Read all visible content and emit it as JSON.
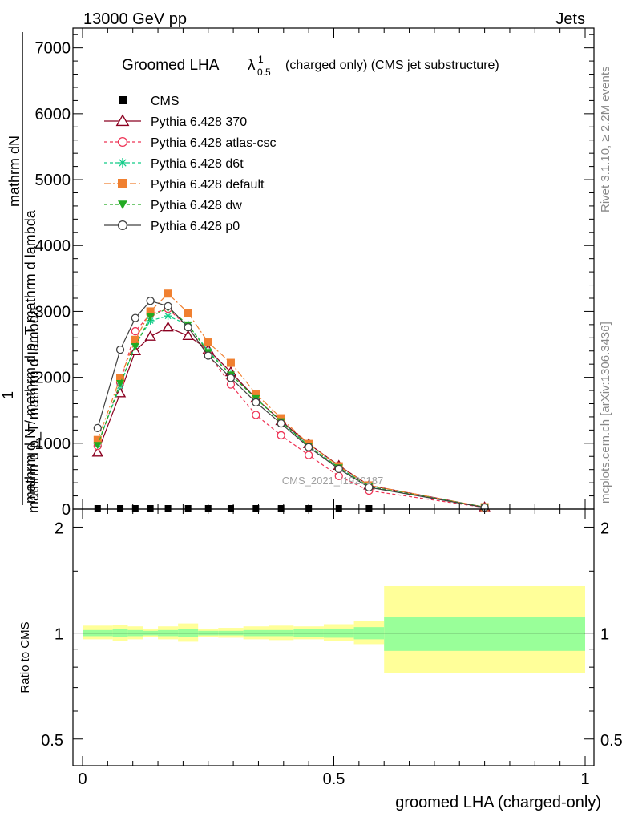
{
  "header": {
    "left": "13000 GeV pp",
    "right": "Jets"
  },
  "side_labels": {
    "rivet": "Rivet 3.1.10, ≥ 2.2M events",
    "mcplots": "mcplots.cern.ch [arXiv:1306.3436]"
  },
  "watermark": "CMS_2021_I1920187",
  "colors": {
    "CMS": "#000000",
    "Pythia 6.428 370": "#8b0020",
    "Pythia 6.428 atlas-csc": "#ee3355",
    "Pythia 6.428 d6t": "#11cc88",
    "Pythia 6.428 default": "#f08030",
    "Pythia 6.428 dw": "#22aa22",
    "Pythia 6.428 p0": "#404040",
    "band_inner": "#99ff99",
    "band_outer": "#ffff99"
  },
  "chart_data": [
    {
      "type": "line",
      "title": "Groomed LHA",
      "title_symbol": "λ",
      "title_sup": "1",
      "title_sub": "0.5",
      "title_suffix": "(charged only) (CMS jet substructure)",
      "ylabel_numerator": "mathrm dN",
      "ylabel_denominator": "mathrm d p_T mathrm d lambda",
      "ylabel_lead": "1",
      "ylabel_lower": "mathrm d N / mathrm d p_T mathrm d lambda",
      "xlim": [
        0,
        1
      ],
      "ylim": [
        0,
        7300
      ],
      "yticks": [
        0,
        1000,
        2000,
        3000,
        4000,
        5000,
        6000,
        7000
      ],
      "ytick_labels": [
        "0",
        "1000",
        "2000",
        "3000",
        "4000",
        "5000",
        "6000",
        "7000"
      ],
      "x": [
        0.03,
        0.075,
        0.105,
        0.135,
        0.17,
        0.21,
        0.25,
        0.295,
        0.345,
        0.395,
        0.45,
        0.51,
        0.57,
        0.8
      ],
      "legend_position": "top-left",
      "series": [
        {
          "name": "CMS",
          "marker": "square",
          "values": [
            0,
            0,
            0,
            0,
            0,
            0,
            0,
            0,
            0,
            0,
            0,
            0,
            0,
            null
          ]
        },
        {
          "name": "Pythia 6.428 370",
          "marker": "triangle",
          "dash": "",
          "values": [
            860,
            1760,
            2400,
            2620,
            2760,
            2630,
            2420,
            2080,
            1680,
            1340,
            990,
            660,
            360,
            30
          ]
        },
        {
          "name": "Pythia 6.428 atlas-csc",
          "marker": "circle",
          "dash": "4,3",
          "values": [
            960,
            1920,
            2700,
            2960,
            3040,
            2760,
            2350,
            1890,
            1430,
            1120,
            820,
            500,
            280,
            25
          ]
        },
        {
          "name": "Pythia 6.428 d6t",
          "marker": "star",
          "dash": "4,3",
          "values": [
            990,
            1870,
            2500,
            2860,
            2930,
            2800,
            2400,
            2040,
            1680,
            1330,
            960,
            630,
            340,
            30
          ]
        },
        {
          "name": "Pythia 6.428 default",
          "marker": "square",
          "dash": "8,3,2,3",
          "values": [
            1050,
            1990,
            2570,
            3000,
            3270,
            2980,
            2530,
            2220,
            1750,
            1380,
            990,
            650,
            360,
            30
          ]
        },
        {
          "name": "Pythia 6.428 dw",
          "marker": "triangle-down",
          "dash": "4,3",
          "values": [
            970,
            1910,
            2470,
            2920,
            3050,
            2800,
            2380,
            2040,
            1680,
            1330,
            960,
            630,
            340,
            30
          ]
        },
        {
          "name": "Pythia 6.428 p0",
          "marker": "circle",
          "dash": "",
          "values": [
            1230,
            2420,
            2900,
            3160,
            3080,
            2760,
            2330,
            1990,
            1620,
            1300,
            940,
            610,
            330,
            25
          ]
        }
      ]
    },
    {
      "type": "area",
      "ylabel": "Ratio to CMS",
      "xlabel": "groomed LHA (charged-only)",
      "xlim": [
        0,
        1
      ],
      "ylim": [
        0.42,
        2.25
      ],
      "yticks": [
        0.5,
        1,
        2
      ],
      "ytick_labels": [
        "0.5",
        "1",
        "2"
      ],
      "xticks": [
        0,
        0.5,
        1
      ],
      "xtick_labels": [
        "0",
        "0.5",
        "1"
      ],
      "reference": 1,
      "bins": [
        0,
        0.06,
        0.09,
        0.12,
        0.15,
        0.19,
        0.23,
        0.27,
        0.32,
        0.37,
        0.42,
        0.48,
        0.54,
        0.6,
        1.0
      ],
      "inner_low": [
        0.98,
        0.975,
        0.98,
        0.985,
        0.98,
        0.975,
        0.985,
        0.985,
        0.98,
        0.98,
        0.975,
        0.97,
        0.96,
        0.89
      ],
      "inner_high": [
        1.02,
        1.025,
        1.02,
        1.015,
        1.02,
        1.025,
        1.015,
        1.015,
        1.02,
        1.02,
        1.025,
        1.03,
        1.04,
        1.11
      ],
      "outer_low": [
        0.96,
        0.95,
        0.96,
        0.975,
        0.96,
        0.945,
        0.975,
        0.97,
        0.96,
        0.955,
        0.96,
        0.95,
        0.93,
        0.77
      ],
      "outer_high": [
        1.05,
        1.055,
        1.045,
        1.03,
        1.045,
        1.065,
        1.03,
        1.035,
        1.045,
        1.05,
        1.045,
        1.06,
        1.08,
        1.36
      ]
    }
  ]
}
